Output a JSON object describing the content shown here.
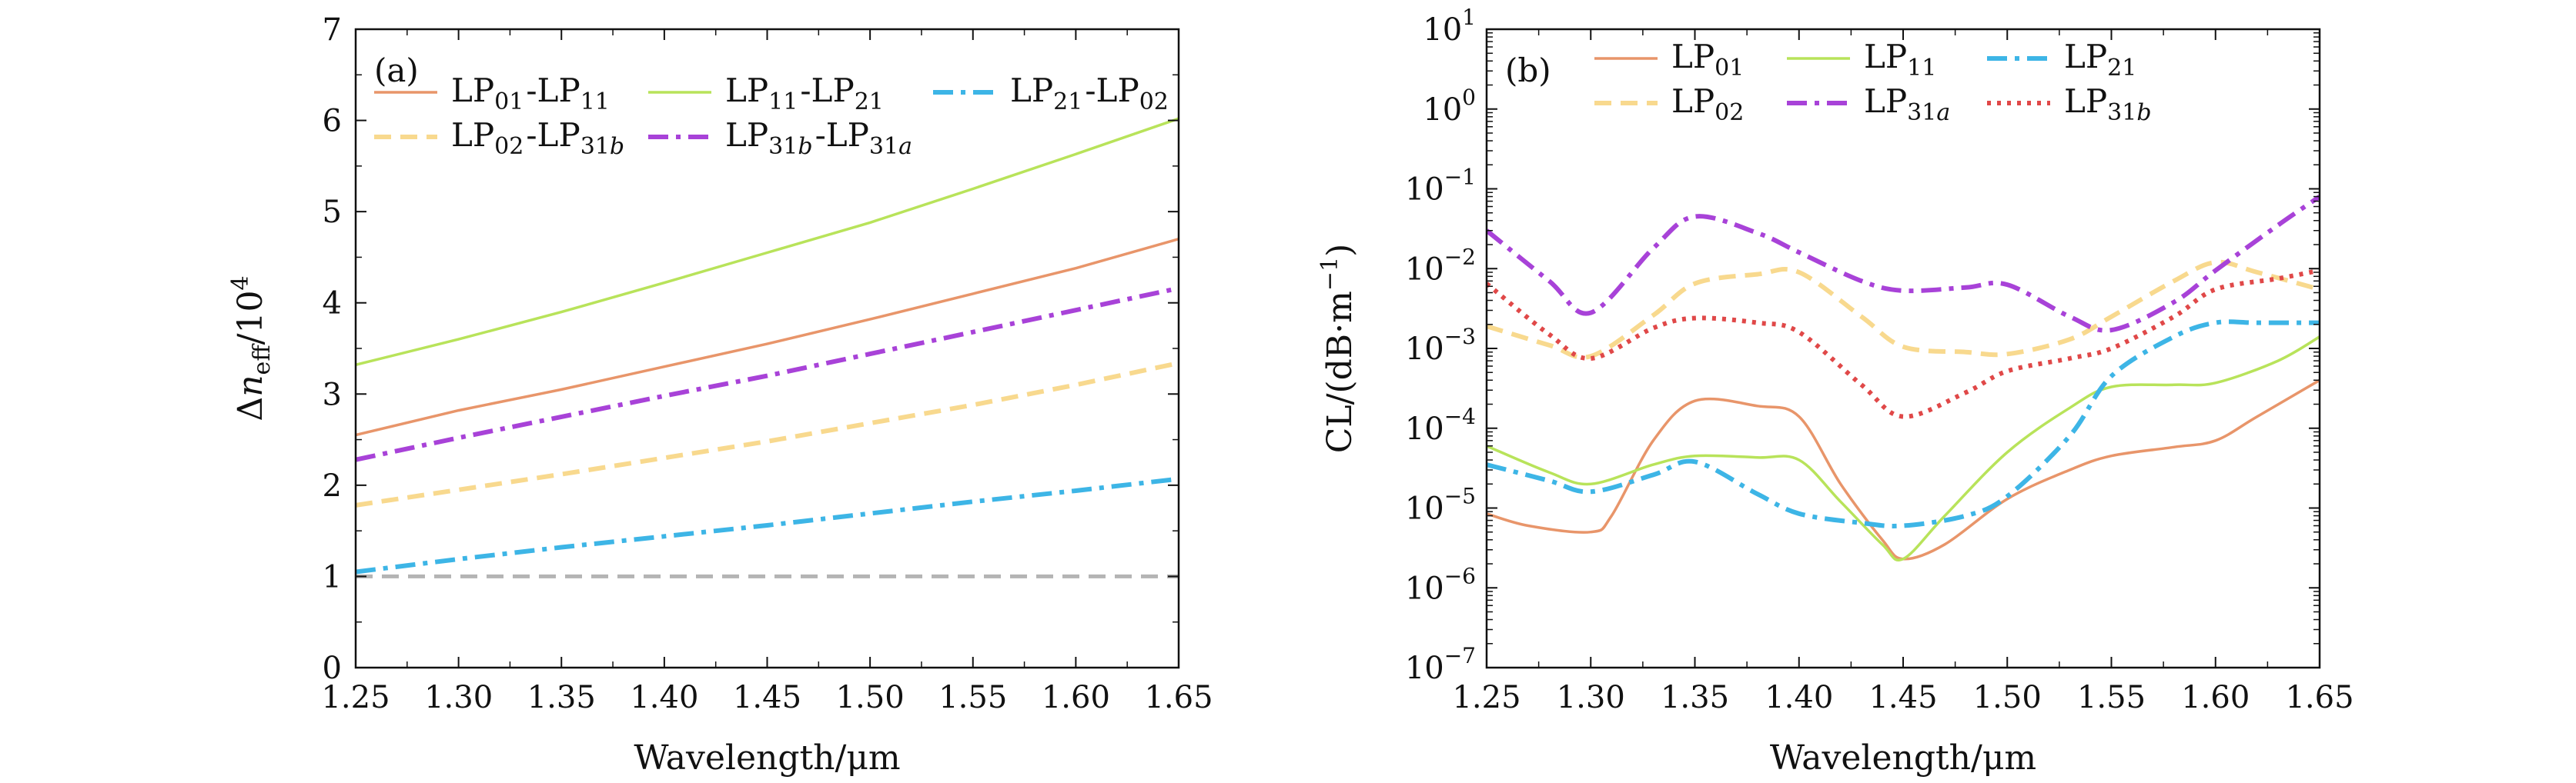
{
  "chart_data": [
    {
      "type": "line",
      "panel_label": "(a)",
      "xlabel": "Wavelength/μm",
      "ylabel": "Δn_eff/10^4",
      "ylabel_parts": {
        "delta": "Δ",
        "n": "n",
        "sub": "eff",
        "tail": "/10",
        "sup": "4"
      },
      "xlim": [
        1.25,
        1.65
      ],
      "ylim": [
        0,
        7
      ],
      "yscale": "linear",
      "xticks": [
        "1.25",
        "1.30",
        "1.35",
        "1.40",
        "1.45",
        "1.50",
        "1.55",
        "1.60",
        "1.65"
      ],
      "xtick_values": [
        1.25,
        1.3,
        1.35,
        1.4,
        1.45,
        1.5,
        1.55,
        1.6,
        1.65
      ],
      "yticks": [
        "0",
        "1",
        "2",
        "3",
        "4",
        "5",
        "6",
        "7"
      ],
      "ytick_values": [
        0,
        1,
        2,
        3,
        4,
        5,
        6,
        7
      ],
      "legend_position": "top",
      "x": [
        1.25,
        1.3,
        1.35,
        1.4,
        1.45,
        1.5,
        1.55,
        1.6,
        1.65
      ],
      "series": [
        {
          "name": "LP01-LP11",
          "parts": [
            [
              "LP",
              "01"
            ],
            [
              "LP",
              "11"
            ]
          ],
          "color": "#e8956a",
          "dash": "solid",
          "values": [
            2.55,
            2.82,
            3.05,
            3.3,
            3.55,
            3.82,
            4.1,
            4.38,
            4.7
          ]
        },
        {
          "name": "LP11-LP21",
          "parts": [
            [
              "LP",
              "11"
            ],
            [
              "LP",
              "21"
            ]
          ],
          "color": "#b8e35a",
          "dash": "solid",
          "values": [
            3.32,
            3.6,
            3.9,
            4.22,
            4.55,
            4.88,
            5.25,
            5.63,
            6.02
          ]
        },
        {
          "name": "LP21-LP02",
          "parts": [
            [
              "LP",
              "21"
            ],
            [
              "LP",
              "02"
            ]
          ],
          "color": "#3db5e6",
          "dash": "dashdot",
          "values": [
            1.05,
            1.19,
            1.32,
            1.44,
            1.56,
            1.69,
            1.82,
            1.94,
            2.07
          ]
        },
        {
          "name": "LP02-LP31b",
          "parts": [
            [
              "LP",
              "02"
            ],
            [
              "LP",
              "31b"
            ]
          ],
          "color": "#f8d98e",
          "dash": "dashed",
          "values": [
            1.78,
            1.95,
            2.12,
            2.3,
            2.48,
            2.68,
            2.88,
            3.1,
            3.34
          ]
        },
        {
          "name": "LP31b-LP31a",
          "parts": [
            [
              "LP",
              "31b"
            ],
            [
              "LP",
              "31a"
            ]
          ],
          "color": "#a842d8",
          "dash": "dashdot",
          "values": [
            2.28,
            2.52,
            2.75,
            2.98,
            3.2,
            3.44,
            3.68,
            3.92,
            4.16
          ]
        }
      ],
      "reference_line": {
        "y": 1,
        "color": "#b4b4b4",
        "dash": "dashed"
      }
    },
    {
      "type": "line",
      "panel_label": "(b)",
      "xlabel": "Wavelength/μm",
      "ylabel": "CL/(dB·m−1)",
      "ylabel_parts": {
        "pre": "CL/(dB·m",
        "sup": "−1",
        "post": ")"
      },
      "xlim": [
        1.25,
        1.65
      ],
      "ylim": [
        1e-07,
        10
      ],
      "yscale": "log",
      "xticks": [
        "1.25",
        "1.30",
        "1.35",
        "1.40",
        "1.45",
        "1.50",
        "1.55",
        "1.60",
        "1.65"
      ],
      "xtick_values": [
        1.25,
        1.3,
        1.35,
        1.4,
        1.45,
        1.5,
        1.55,
        1.6,
        1.65
      ],
      "yticks": [
        [
          "10",
          "−7"
        ],
        [
          "10",
          "−6"
        ],
        [
          "10",
          "−5"
        ],
        [
          "10",
          "−4"
        ],
        [
          "10",
          "−3"
        ],
        [
          "10",
          "−2"
        ],
        [
          "10",
          "−1"
        ],
        [
          "10",
          "0"
        ],
        [
          "10",
          "1"
        ]
      ],
      "ytick_exponents": [
        -7,
        -6,
        -5,
        -4,
        -3,
        -2,
        -1,
        0,
        1
      ],
      "legend_position": "top",
      "series": [
        {
          "name": "LP01",
          "parts": [
            [
              "LP",
              "01"
            ]
          ],
          "color": "#e8956a",
          "dash": "solid",
          "x": [
            1.25,
            1.27,
            1.3,
            1.31,
            1.33,
            1.35,
            1.38,
            1.4,
            1.42,
            1.44,
            1.45,
            1.47,
            1.5,
            1.53,
            1.55,
            1.58,
            1.6,
            1.62,
            1.65
          ],
          "values": [
            8.5e-06,
            6e-06,
            5e-06,
            8e-06,
            7e-05,
            0.00022,
            0.00019,
            0.00014,
            2e-05,
            4e-06,
            2.3e-06,
            3.5e-06,
            1.3e-05,
            3e-05,
            4.5e-05,
            5.8e-05,
            7e-05,
            0.00014,
            0.0004
          ]
        },
        {
          "name": "LP11",
          "parts": [
            [
              "LP",
              "11"
            ]
          ],
          "color": "#b8e35a",
          "dash": "solid",
          "x": [
            1.25,
            1.28,
            1.3,
            1.33,
            1.35,
            1.38,
            1.4,
            1.42,
            1.44,
            1.45,
            1.47,
            1.5,
            1.53,
            1.55,
            1.58,
            1.6,
            1.63,
            1.65
          ],
          "values": [
            6e-05,
            2.8e-05,
            2e-05,
            3.5e-05,
            4.5e-05,
            4.3e-05,
            4e-05,
            1.2e-05,
            3.5e-06,
            2.3e-06,
            8e-06,
            5e-05,
            0.00018,
            0.00033,
            0.00035,
            0.00037,
            0.0007,
            0.0014
          ]
        },
        {
          "name": "LP21",
          "parts": [
            [
              "LP",
              "21"
            ]
          ],
          "color": "#3db5e6",
          "dash": "dashdot",
          "x": [
            1.25,
            1.28,
            1.3,
            1.33,
            1.35,
            1.38,
            1.4,
            1.43,
            1.45,
            1.48,
            1.5,
            1.53,
            1.55,
            1.58,
            1.6,
            1.62,
            1.65
          ],
          "values": [
            3.5e-05,
            2.2e-05,
            1.6e-05,
            2.6e-05,
            3.8e-05,
            1.5e-05,
            8.5e-06,
            6.5e-06,
            6e-06,
            8e-06,
            1.4e-05,
            8e-05,
            0.00045,
            0.0014,
            0.0021,
            0.0021,
            0.0021
          ]
        },
        {
          "name": "LP02",
          "parts": [
            [
              "LP",
              "02"
            ]
          ],
          "color": "#f8d98e",
          "dash": "dashed",
          "x": [
            1.25,
            1.28,
            1.3,
            1.33,
            1.35,
            1.38,
            1.4,
            1.43,
            1.45,
            1.48,
            1.5,
            1.53,
            1.55,
            1.58,
            1.6,
            1.62,
            1.65
          ],
          "values": [
            0.0019,
            0.0011,
            0.0008,
            0.0026,
            0.0065,
            0.0085,
            0.009,
            0.0025,
            0.00105,
            0.0009,
            0.00085,
            0.0013,
            0.0025,
            0.007,
            0.012,
            0.009,
            0.0055
          ]
        },
        {
          "name": "LP31a",
          "parts": [
            [
              "LP",
              "31a"
            ]
          ],
          "color": "#a842d8",
          "dash": "dashdot",
          "x": [
            1.25,
            1.28,
            1.3,
            1.33,
            1.35,
            1.38,
            1.4,
            1.43,
            1.45,
            1.48,
            1.5,
            1.53,
            1.55,
            1.58,
            1.6,
            1.63,
            1.65
          ],
          "values": [
            0.03,
            0.007,
            0.0028,
            0.018,
            0.045,
            0.028,
            0.016,
            0.007,
            0.0053,
            0.0058,
            0.0063,
            0.0025,
            0.0017,
            0.0038,
            0.0095,
            0.035,
            0.08
          ]
        },
        {
          "name": "LP31b",
          "parts": [
            [
              "LP",
              "31b"
            ]
          ],
          "color": "#e04848",
          "dash": "dotted",
          "x": [
            1.25,
            1.28,
            1.3,
            1.33,
            1.35,
            1.38,
            1.4,
            1.43,
            1.45,
            1.48,
            1.5,
            1.53,
            1.55,
            1.58,
            1.6,
            1.63,
            1.65
          ],
          "values": [
            0.0065,
            0.0015,
            0.00075,
            0.0018,
            0.0024,
            0.0021,
            0.0016,
            0.00035,
            0.00014,
            0.00028,
            0.00052,
            0.00075,
            0.001,
            0.0025,
            0.0055,
            0.0075,
            0.0095
          ]
        }
      ]
    }
  ]
}
